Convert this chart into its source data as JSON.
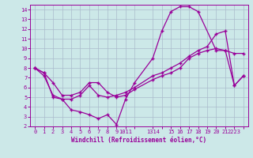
{
  "xlabel": "Windchill (Refroidissement éolien,°C)",
  "bg_color": "#cce8e8",
  "grid_color": "#aabbcc",
  "line_color": "#990099",
  "xlim": [
    -0.5,
    23.5
  ],
  "ylim": [
    2,
    14.5
  ],
  "yticks": [
    2,
    3,
    4,
    5,
    6,
    7,
    8,
    9,
    10,
    11,
    12,
    13,
    14
  ],
  "line1_x": [
    0,
    1,
    2,
    3,
    4,
    5,
    6,
    7,
    8,
    9,
    10,
    11,
    13,
    14,
    15,
    16,
    17,
    18,
    19,
    20,
    21,
    22,
    23
  ],
  "line1_y": [
    8.0,
    7.5,
    6.5,
    5.2,
    5.2,
    5.5,
    6.5,
    6.5,
    5.5,
    5.0,
    5.2,
    5.8,
    6.8,
    7.2,
    7.5,
    8.0,
    9.0,
    9.5,
    9.8,
    10.0,
    9.8,
    9.5,
    9.5
  ],
  "line2_x": [
    0,
    1,
    2,
    3,
    4,
    5,
    6,
    7,
    8,
    9,
    10,
    11,
    13,
    14,
    15,
    16,
    17,
    18,
    19,
    20,
    21,
    22,
    23
  ],
  "line2_y": [
    8.0,
    7.2,
    5.2,
    4.8,
    4.8,
    5.2,
    6.2,
    5.2,
    5.0,
    5.2,
    5.5,
    6.0,
    7.2,
    7.5,
    8.0,
    8.5,
    9.2,
    9.8,
    10.2,
    11.5,
    11.8,
    6.2,
    7.2
  ],
  "line3_x": [
    0,
    1,
    2,
    3,
    4,
    5,
    6,
    7,
    8,
    9,
    10,
    11,
    13,
    14,
    15,
    16,
    17,
    18,
    20,
    21,
    22,
    23
  ],
  "line3_y": [
    8.0,
    7.5,
    5.0,
    4.8,
    3.7,
    3.5,
    3.2,
    2.8,
    3.2,
    2.2,
    4.8,
    6.5,
    9.0,
    11.8,
    13.8,
    14.3,
    14.3,
    13.8,
    9.8,
    9.8,
    6.2,
    7.2
  ],
  "marker": "+"
}
